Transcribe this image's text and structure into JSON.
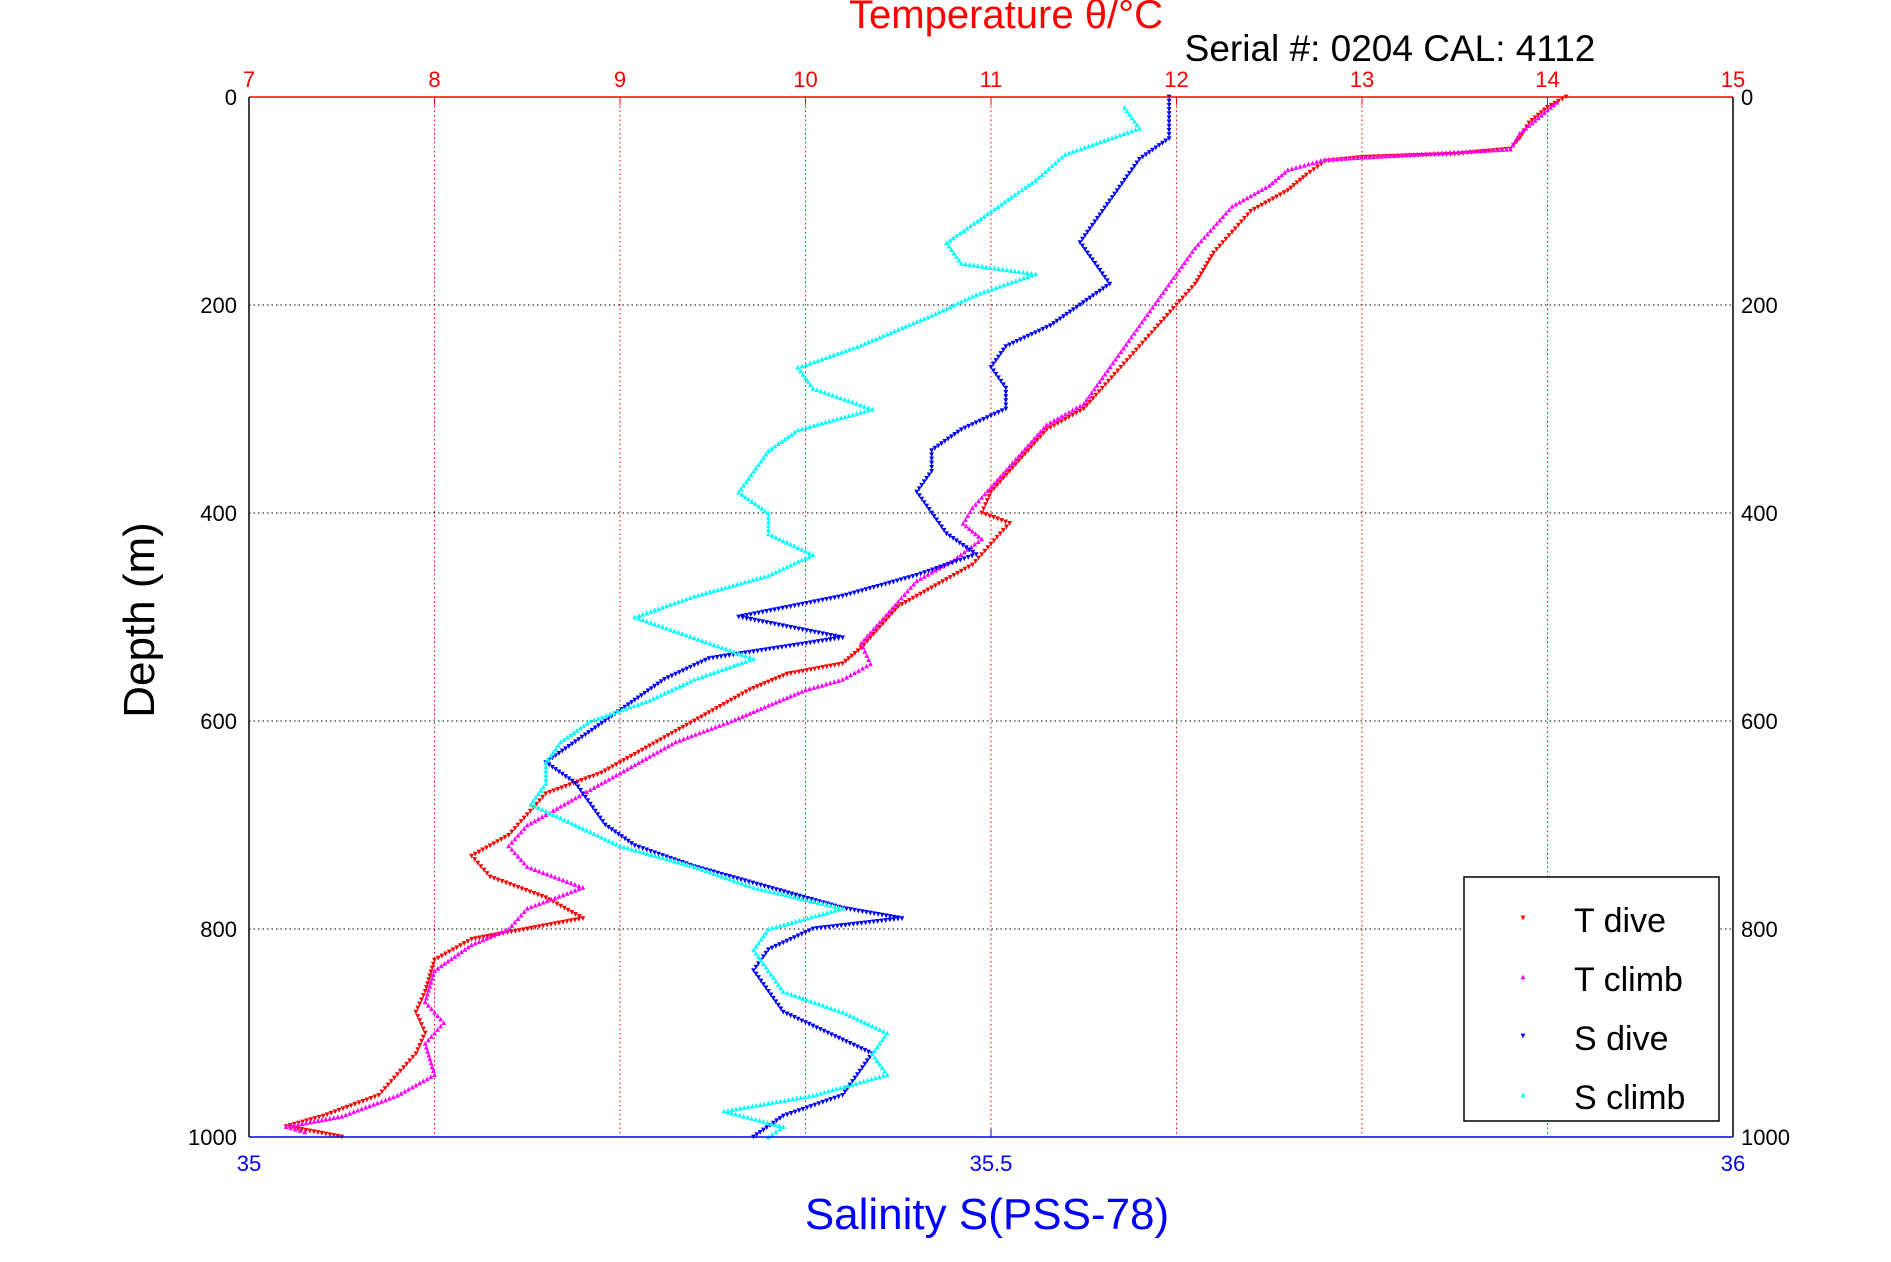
{
  "chart_data": {
    "type": "scatter",
    "title": "Temperature θ/°C",
    "subtitle": "Serial #: 0204  CAL: 4112",
    "ylabel": "Depth (m)",
    "xlabel": "Salinity S(PSS-78)",
    "y_axis": {
      "range": [
        0,
        1000
      ],
      "reversed": true,
      "ticks": [
        0,
        200,
        400,
        600,
        800,
        1000
      ],
      "tick_labels": [
        "0",
        "200",
        "400",
        "600",
        "800",
        "1000"
      ]
    },
    "x_top_axis": {
      "quantity": "temperature",
      "range": [
        7,
        15
      ],
      "ticks": [
        7,
        8,
        9,
        10,
        11,
        12,
        13,
        14,
        15
      ],
      "tick_labels": [
        "7",
        "8",
        "9",
        "10",
        "11",
        "12",
        "13",
        "14",
        "15"
      ],
      "color": "#ff0000"
    },
    "x_bottom_axis": {
      "quantity": "salinity",
      "range": [
        35,
        36
      ],
      "ticks": [
        35,
        35.5,
        36
      ],
      "tick_labels": [
        "35",
        "35.5",
        "36"
      ],
      "color": "#0000ff"
    },
    "grid": true,
    "legend_position": "bottom-right",
    "series": [
      {
        "name": "T dive",
        "axis": "temperature",
        "color": "#ff0000",
        "marker": "triangle-down",
        "points": [
          [
            14.1,
            0
          ],
          [
            14.0,
            10
          ],
          [
            13.9,
            25
          ],
          [
            13.85,
            40
          ],
          [
            13.8,
            50
          ],
          [
            13.5,
            55
          ],
          [
            13.0,
            58
          ],
          [
            12.8,
            62
          ],
          [
            12.7,
            75
          ],
          [
            12.6,
            90
          ],
          [
            12.4,
            110
          ],
          [
            12.3,
            130
          ],
          [
            12.2,
            150
          ],
          [
            12.1,
            180
          ],
          [
            12.0,
            200
          ],
          [
            11.9,
            220
          ],
          [
            11.8,
            240
          ],
          [
            11.7,
            260
          ],
          [
            11.6,
            280
          ],
          [
            11.5,
            300
          ],
          [
            11.3,
            320
          ],
          [
            11.2,
            340
          ],
          [
            11.1,
            360
          ],
          [
            11.0,
            380
          ],
          [
            10.95,
            400
          ],
          [
            11.1,
            410
          ],
          [
            11.0,
            430
          ],
          [
            10.9,
            450
          ],
          [
            10.7,
            470
          ],
          [
            10.5,
            490
          ],
          [
            10.4,
            510
          ],
          [
            10.3,
            530
          ],
          [
            10.2,
            545
          ],
          [
            9.9,
            555
          ],
          [
            9.7,
            570
          ],
          [
            9.5,
            590
          ],
          [
            9.3,
            610
          ],
          [
            9.1,
            630
          ],
          [
            8.9,
            650
          ],
          [
            8.6,
            670
          ],
          [
            8.5,
            690
          ],
          [
            8.4,
            710
          ],
          [
            8.2,
            730
          ],
          [
            8.3,
            750
          ],
          [
            8.6,
            770
          ],
          [
            8.8,
            790
          ],
          [
            8.5,
            800
          ],
          [
            8.2,
            810
          ],
          [
            8.0,
            830
          ],
          [
            7.95,
            860
          ],
          [
            7.9,
            880
          ],
          [
            7.95,
            900
          ],
          [
            7.9,
            920
          ],
          [
            7.8,
            940
          ],
          [
            7.7,
            960
          ],
          [
            7.4,
            980
          ],
          [
            7.2,
            990
          ],
          [
            7.5,
            1000
          ]
        ]
      },
      {
        "name": "T climb",
        "axis": "temperature",
        "color": "#ff00ff",
        "marker": "triangle-up",
        "points": [
          [
            14.05,
            5
          ],
          [
            13.85,
            35
          ],
          [
            13.8,
            50
          ],
          [
            12.8,
            60
          ],
          [
            12.6,
            70
          ],
          [
            12.5,
            85
          ],
          [
            12.3,
            105
          ],
          [
            12.2,
            125
          ],
          [
            12.1,
            145
          ],
          [
            12.0,
            170
          ],
          [
            11.9,
            195
          ],
          [
            11.8,
            220
          ],
          [
            11.7,
            245
          ],
          [
            11.6,
            270
          ],
          [
            11.5,
            295
          ],
          [
            11.3,
            315
          ],
          [
            11.2,
            335
          ],
          [
            11.1,
            355
          ],
          [
            11.0,
            375
          ],
          [
            10.9,
            395
          ],
          [
            10.85,
            410
          ],
          [
            10.95,
            425
          ],
          [
            10.8,
            445
          ],
          [
            10.6,
            465
          ],
          [
            10.5,
            485
          ],
          [
            10.4,
            505
          ],
          [
            10.3,
            525
          ],
          [
            10.35,
            545
          ],
          [
            10.2,
            560
          ],
          [
            10.0,
            570
          ],
          [
            9.8,
            585
          ],
          [
            9.6,
            600
          ],
          [
            9.3,
            620
          ],
          [
            9.1,
            640
          ],
          [
            8.9,
            660
          ],
          [
            8.7,
            680
          ],
          [
            8.5,
            700
          ],
          [
            8.4,
            720
          ],
          [
            8.5,
            740
          ],
          [
            8.8,
            760
          ],
          [
            8.5,
            780
          ],
          [
            8.4,
            800
          ],
          [
            8.2,
            815
          ],
          [
            8.0,
            840
          ],
          [
            7.95,
            870
          ],
          [
            8.05,
            890
          ],
          [
            7.95,
            910
          ],
          [
            8.0,
            940
          ],
          [
            7.8,
            960
          ],
          [
            7.5,
            980
          ],
          [
            7.2,
            990
          ],
          [
            7.3,
            995
          ]
        ]
      },
      {
        "name": "S dive",
        "axis": "salinity",
        "color": "#0000ff",
        "marker": "triangle-down",
        "points": [
          [
            35.62,
            0
          ],
          [
            35.62,
            20
          ],
          [
            35.62,
            40
          ],
          [
            35.6,
            60
          ],
          [
            35.59,
            80
          ],
          [
            35.58,
            100
          ],
          [
            35.57,
            120
          ],
          [
            35.56,
            140
          ],
          [
            35.57,
            160
          ],
          [
            35.58,
            180
          ],
          [
            35.56,
            200
          ],
          [
            35.54,
            220
          ],
          [
            35.51,
            240
          ],
          [
            35.5,
            260
          ],
          [
            35.51,
            280
          ],
          [
            35.51,
            300
          ],
          [
            35.48,
            320
          ],
          [
            35.46,
            340
          ],
          [
            35.46,
            360
          ],
          [
            35.45,
            380
          ],
          [
            35.46,
            400
          ],
          [
            35.47,
            420
          ],
          [
            35.49,
            440
          ],
          [
            35.45,
            460
          ],
          [
            35.4,
            480
          ],
          [
            35.33,
            500
          ],
          [
            35.4,
            520
          ],
          [
            35.31,
            540
          ],
          [
            35.28,
            560
          ],
          [
            35.26,
            580
          ],
          [
            35.24,
            600
          ],
          [
            35.22,
            620
          ],
          [
            35.2,
            640
          ],
          [
            35.22,
            660
          ],
          [
            35.23,
            680
          ],
          [
            35.24,
            700
          ],
          [
            35.26,
            720
          ],
          [
            35.3,
            740
          ],
          [
            35.35,
            760
          ],
          [
            35.4,
            780
          ],
          [
            35.44,
            790
          ],
          [
            35.38,
            800
          ],
          [
            35.35,
            820
          ],
          [
            35.34,
            840
          ],
          [
            35.35,
            860
          ],
          [
            35.36,
            880
          ],
          [
            35.39,
            900
          ],
          [
            35.42,
            920
          ],
          [
            35.41,
            940
          ],
          [
            35.4,
            960
          ],
          [
            35.36,
            980
          ],
          [
            35.34,
            1000
          ]
        ]
      },
      {
        "name": "S climb",
        "axis": "salinity",
        "color": "#00ffff",
        "marker": "triangle-up",
        "points": [
          [
            35.59,
            10
          ],
          [
            35.6,
            30
          ],
          [
            35.55,
            55
          ],
          [
            35.53,
            80
          ],
          [
            35.5,
            110
          ],
          [
            35.47,
            140
          ],
          [
            35.48,
            160
          ],
          [
            35.53,
            170
          ],
          [
            35.49,
            190
          ],
          [
            35.46,
            210
          ],
          [
            35.41,
            240
          ],
          [
            35.37,
            260
          ],
          [
            35.38,
            280
          ],
          [
            35.42,
            300
          ],
          [
            35.37,
            320
          ],
          [
            35.35,
            340
          ],
          [
            35.34,
            360
          ],
          [
            35.33,
            380
          ],
          [
            35.35,
            400
          ],
          [
            35.35,
            420
          ],
          [
            35.38,
            440
          ],
          [
            35.35,
            460
          ],
          [
            35.3,
            480
          ],
          [
            35.26,
            500
          ],
          [
            35.3,
            520
          ],
          [
            35.34,
            540
          ],
          [
            35.3,
            560
          ],
          [
            35.27,
            580
          ],
          [
            35.23,
            600
          ],
          [
            35.21,
            620
          ],
          [
            35.2,
            640
          ],
          [
            35.2,
            660
          ],
          [
            35.19,
            680
          ],
          [
            35.22,
            700
          ],
          [
            35.25,
            720
          ],
          [
            35.3,
            740
          ],
          [
            35.34,
            760
          ],
          [
            35.4,
            780
          ],
          [
            35.35,
            800
          ],
          [
            35.34,
            820
          ],
          [
            35.35,
            840
          ],
          [
            35.36,
            860
          ],
          [
            35.4,
            880
          ],
          [
            35.43,
            900
          ],
          [
            35.42,
            920
          ],
          [
            35.43,
            940
          ],
          [
            35.38,
            960
          ],
          [
            35.32,
            975
          ],
          [
            35.36,
            990
          ],
          [
            35.35,
            1000
          ]
        ]
      }
    ]
  }
}
